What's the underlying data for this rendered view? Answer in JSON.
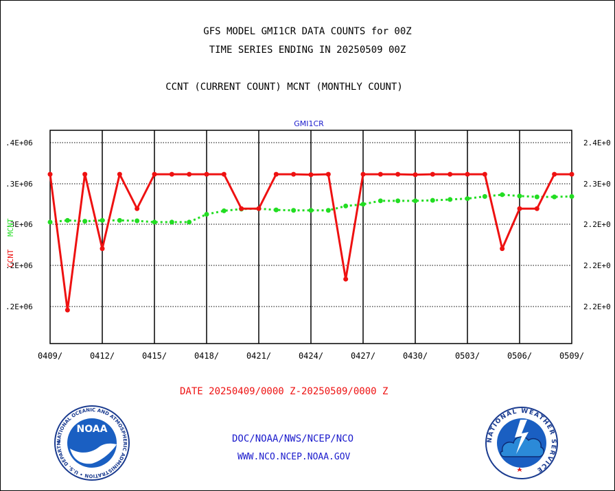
{
  "header": {
    "line1": "GFS MODEL GMI1CR DATA COUNTS for 00Z",
    "line2": "TIME SERIES ENDING IN 20250509 00Z",
    "line3": "CCNT (CURRENT COUNT) MCNT (MONTHLY COUNT)"
  },
  "footer": {
    "date_range": "DATE 20250409/0000 Z-20250509/0000 Z",
    "agency": "DOC/NOAA/NWS/NCEP/NCO",
    "website": "WWW.NCO.NCEP.NOAA.GOV"
  },
  "logos": {
    "noaa_text": "NOAA",
    "noaa_ring": "NATIONAL OCEANIC AND ATMOSPHERIC ADMINISTRATION • U.S. DEPARTMENT OF COMMERCE",
    "nws_ring": "NATIONAL WEATHER SERVICE"
  },
  "colors": {
    "ccnt": "#ee1111",
    "mcnt": "#22dd22",
    "title_blue": "#1a1acc",
    "footer_red": "#ee1111"
  },
  "chart_data": {
    "type": "line",
    "title": "GMI1CR",
    "xlabel": "",
    "ylabel_left": [
      "CCNT",
      "MCNT"
    ],
    "x": [
      "0409",
      "0410",
      "0411",
      "0412",
      "0413",
      "0414",
      "0415",
      "0416",
      "0417",
      "0418",
      "0419",
      "0420",
      "0421",
      "0422",
      "0423",
      "0424",
      "0425",
      "0426",
      "0427",
      "0428",
      "0429",
      "0430",
      "0501",
      "0502",
      "0503",
      "0504",
      "0505",
      "0506",
      "0507",
      "0508",
      "0509"
    ],
    "x_tick_labels": [
      "0409/",
      "0412/",
      "0415/",
      "0418/",
      "0421/",
      "0424/",
      "0427/",
      "0430/",
      "0503/",
      "0506/",
      "0509/"
    ],
    "y_ticks_left": [
      ".2E+06",
      ".2E+06",
      ".3E+06",
      ".3E+06",
      ".4E+06"
    ],
    "y_ticks_right": [
      "2.2E+0",
      "2.2E+0",
      "2.2E+0",
      "2.3E+0",
      "2.4E+0"
    ],
    "grid": true,
    "series": [
      {
        "name": "CCNT",
        "values": [
          0.3445,
          0.1885,
          0.3445,
          0.259,
          0.3445,
          0.305,
          0.3445,
          0.3445,
          0.3445,
          0.3445,
          0.3445,
          0.305,
          0.305,
          0.3445,
          0.3445,
          0.344,
          0.3445,
          0.224,
          0.3445,
          0.3445,
          0.3445,
          0.344,
          0.3445,
          0.3445,
          0.3445,
          0.3445,
          0.259,
          0.305,
          0.305,
          0.3445,
          0.3445
        ]
      },
      {
        "name": "MCNT",
        "values": [
          0.2895,
          0.2915,
          0.2905,
          0.2915,
          0.2915,
          0.291,
          0.2895,
          0.2895,
          0.2895,
          0.2985,
          0.3025,
          0.3045,
          0.305,
          0.3035,
          0.303,
          0.303,
          0.303,
          0.308,
          0.31,
          0.314,
          0.314,
          0.314,
          0.3145,
          0.3155,
          0.3165,
          0.319,
          0.321,
          0.3195,
          0.3185,
          0.3185,
          0.319
        ]
      }
    ],
    "ylim": [
      0.15,
      0.395
    ]
  }
}
